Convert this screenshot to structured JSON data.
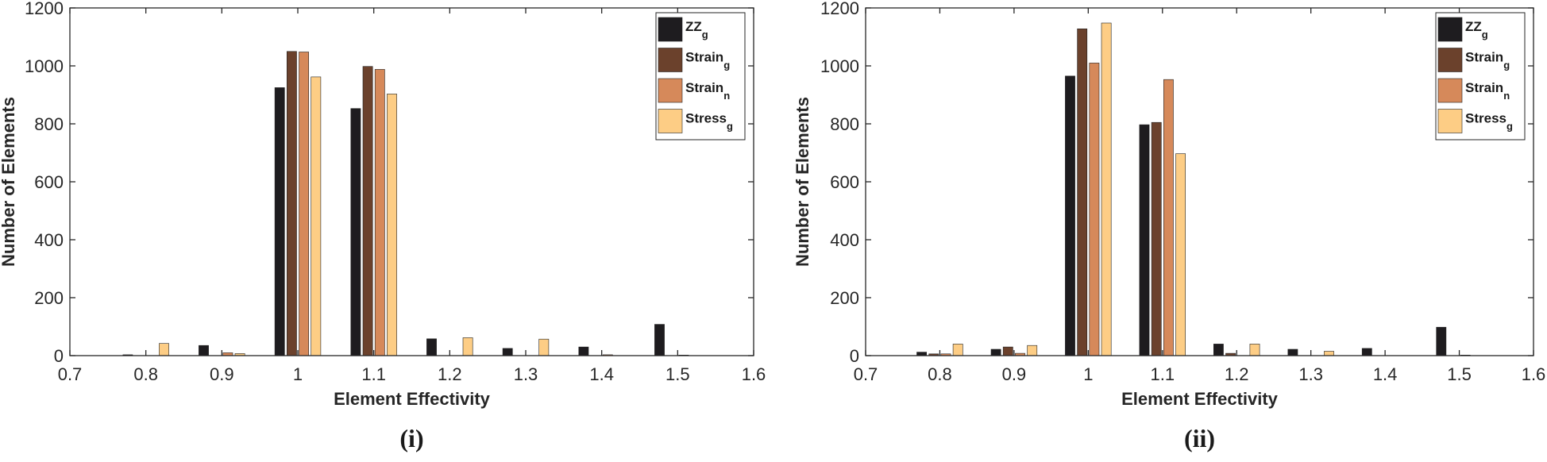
{
  "chart_data": [
    {
      "type": "bar",
      "panel_label": "(i)",
      "xlabel": "Element Effectivity",
      "ylabel": "Number of Elements",
      "xlim": [
        0.7,
        1.6
      ],
      "ylim": [
        0,
        1200
      ],
      "xticks": [
        "0.7",
        "0.8",
        "0.9",
        "1",
        "1.1",
        "1.2",
        "1.3",
        "1.4",
        "1.5",
        "1.6"
      ],
      "yticks": [
        "0",
        "200",
        "400",
        "600",
        "800",
        "1000",
        "1200"
      ],
      "categories": [
        0.8,
        0.9,
        1.0,
        1.1,
        1.2,
        1.3,
        1.4,
        1.5
      ],
      "legend_position": "top-right",
      "grid": false,
      "series": [
        {
          "name": "ZZ",
          "subscript": "g",
          "color": "#1e1c1f",
          "values": [
            3,
            35,
            925,
            853,
            58,
            25,
            30,
            108
          ]
        },
        {
          "name": "Strain",
          "subscript": "g",
          "color": "#6b412c",
          "values": [
            0,
            0,
            1050,
            998,
            0,
            0,
            0,
            0
          ]
        },
        {
          "name": "Strain",
          "subscript": "n",
          "color": "#d6895a",
          "values": [
            0,
            10,
            1048,
            988,
            0,
            0,
            3,
            2
          ]
        },
        {
          "name": "Stress",
          "subscript": "g",
          "color": "#fdcd85",
          "values": [
            42,
            7,
            962,
            903,
            62,
            57,
            0,
            0
          ]
        }
      ]
    },
    {
      "type": "bar",
      "panel_label": "(ii)",
      "xlabel": "Element Effectivity",
      "ylabel": "Number of Elements",
      "xlim": [
        0.7,
        1.6
      ],
      "ylim": [
        0,
        1200
      ],
      "xticks": [
        "0.7",
        "0.8",
        "0.9",
        "1",
        "1.1",
        "1.2",
        "1.3",
        "1.4",
        "1.5",
        "1.6"
      ],
      "yticks": [
        "0",
        "200",
        "400",
        "600",
        "800",
        "1000",
        "1200"
      ],
      "categories": [
        0.8,
        0.9,
        1.0,
        1.1,
        1.2,
        1.3,
        1.4,
        1.5
      ],
      "legend_position": "top-right",
      "grid": false,
      "series": [
        {
          "name": "ZZ",
          "subscript": "g",
          "color": "#1e1c1f",
          "values": [
            12,
            22,
            965,
            797,
            40,
            22,
            25,
            98
          ]
        },
        {
          "name": "Strain",
          "subscript": "g",
          "color": "#6b412c",
          "values": [
            6,
            30,
            1128,
            805,
            8,
            0,
            0,
            0
          ]
        },
        {
          "name": "Strain",
          "subscript": "n",
          "color": "#d6895a",
          "values": [
            6,
            8,
            1010,
            953,
            0,
            0,
            0,
            2
          ]
        },
        {
          "name": "Stress",
          "subscript": "g",
          "color": "#fdcd85",
          "values": [
            40,
            35,
            1148,
            697,
            40,
            15,
            0,
            0
          ]
        }
      ]
    }
  ]
}
